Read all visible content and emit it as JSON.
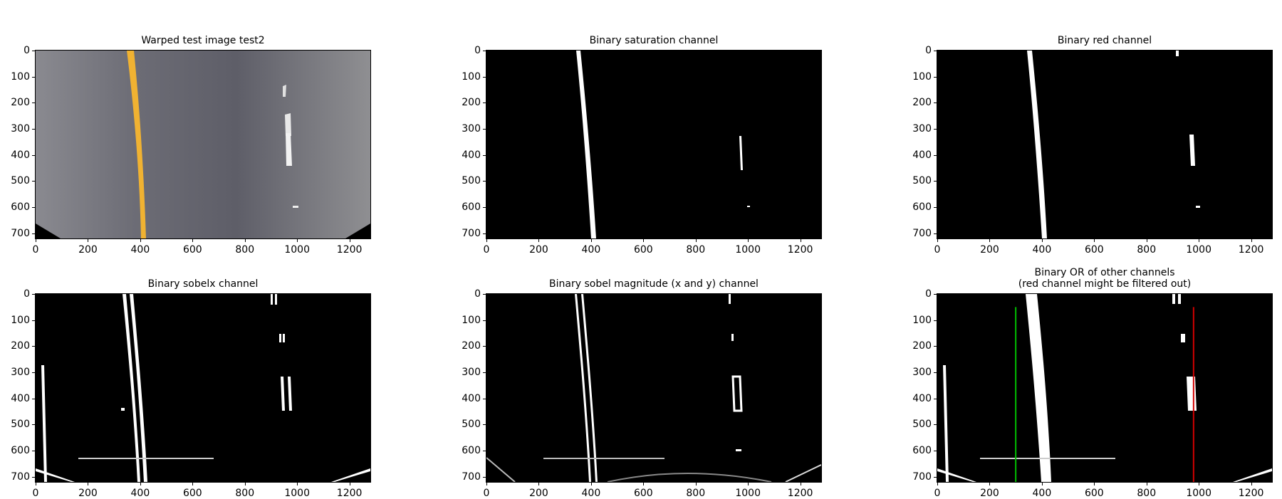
{
  "figure": {
    "panels": [
      {
        "title": "Warped test image test2",
        "kind": "color"
      },
      {
        "title": "Binary saturation channel",
        "kind": "binary"
      },
      {
        "title": "Binary red channel",
        "kind": "binary"
      },
      {
        "title": "Binary sobelx channel",
        "kind": "binary"
      },
      {
        "title": "Binary sobel magnitude (x and y) channel",
        "kind": "binary"
      },
      {
        "title": "Binary OR of other channels\n(red channel might be filtered out)",
        "kind": "binary"
      }
    ],
    "xticks": [
      "0",
      "200",
      "400",
      "600",
      "800",
      "1000",
      "1200"
    ],
    "yticks": [
      "0",
      "100",
      "200",
      "300",
      "400",
      "500",
      "600",
      "700"
    ],
    "histogram_peak_lines": [
      {
        "x": 300,
        "color": "#00c000"
      },
      {
        "x": 980,
        "color": "#d00000"
      }
    ]
  }
}
